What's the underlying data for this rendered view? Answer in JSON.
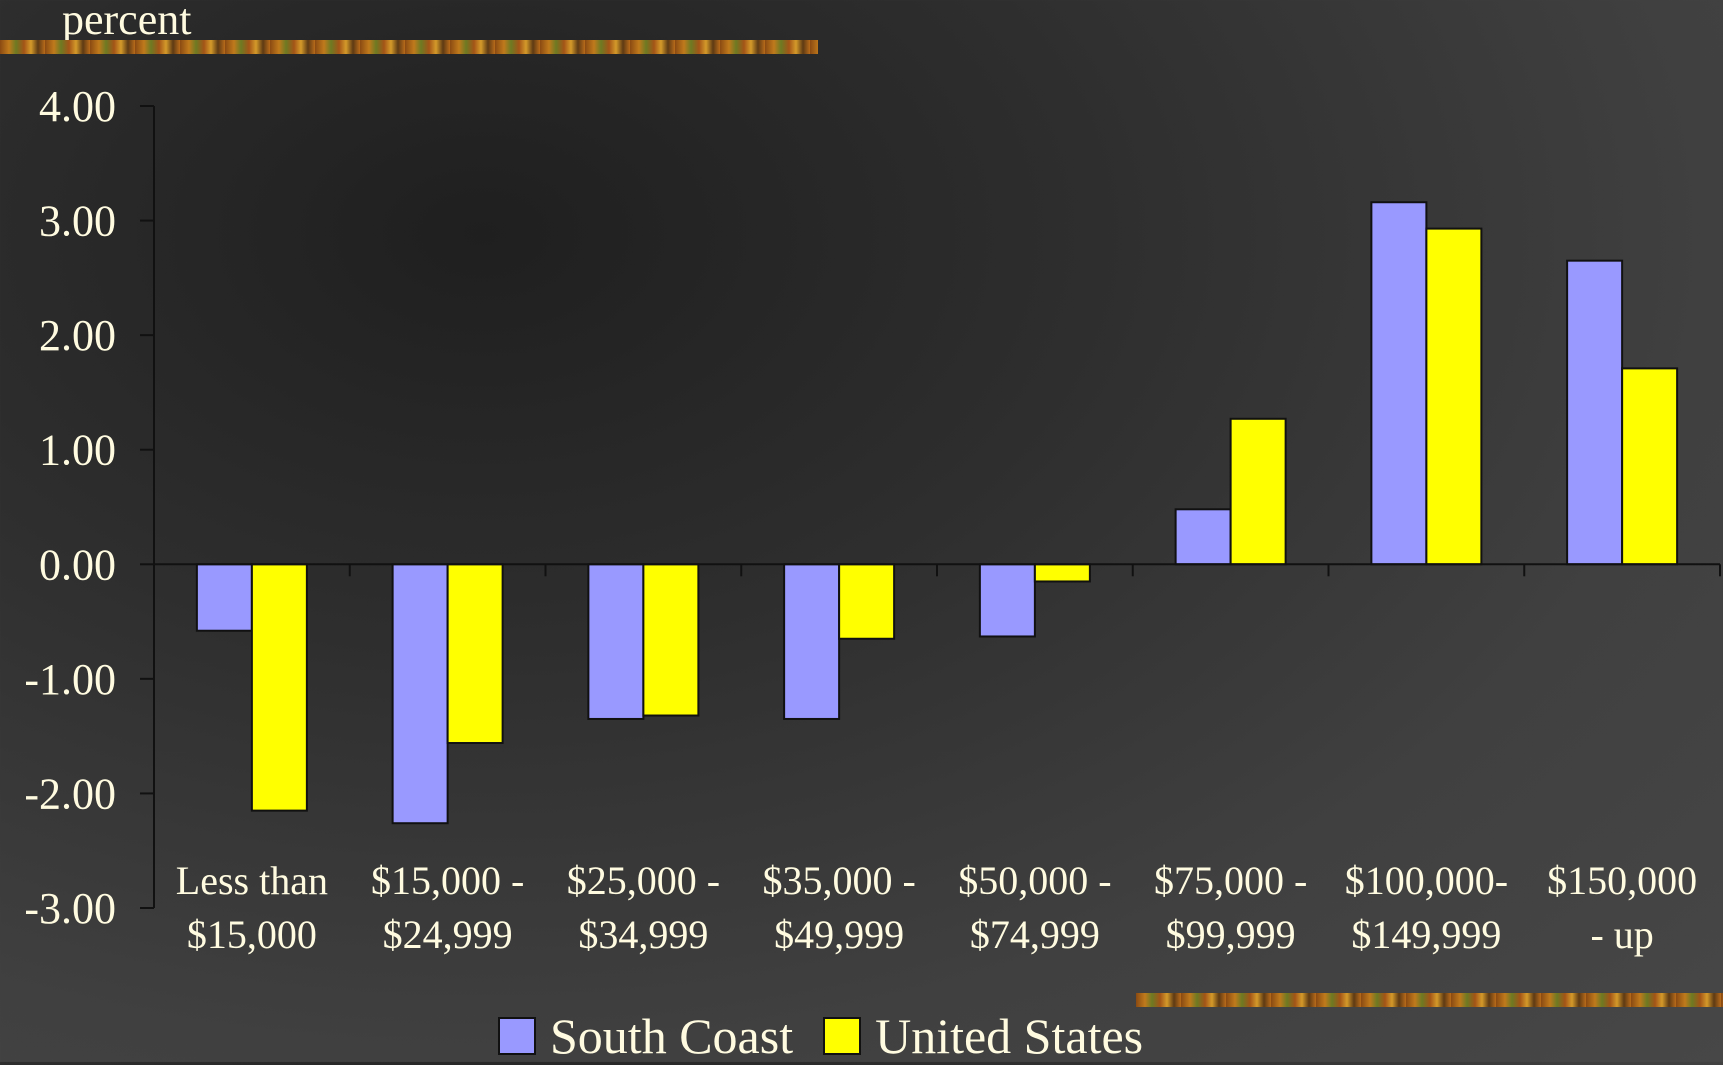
{
  "chart_data": {
    "type": "bar",
    "ylabel": "percent",
    "ylim": [
      -3,
      4
    ],
    "yticks": [
      "4.00",
      "3.00",
      "2.00",
      "1.00",
      "0.00",
      "-1.00",
      "-2.00",
      "-3.00"
    ],
    "yticks_values": [
      4,
      3,
      2,
      1,
      0,
      -1,
      -2,
      -3
    ],
    "categories": [
      [
        "Less than",
        "$15,000"
      ],
      [
        "$15,000 -",
        "$24,999"
      ],
      [
        "$25,000 -",
        "$34,999"
      ],
      [
        "$35,000 -",
        "$49,999"
      ],
      [
        "$50,000 -",
        "$74,999"
      ],
      [
        "$75,000 -",
        "$99,999"
      ],
      [
        "$100,000-",
        "$149,999"
      ],
      [
        "$150,000",
        "- up"
      ]
    ],
    "series": [
      {
        "name": "South Coast",
        "color": "#9999ff",
        "values": [
          -0.58,
          -2.26,
          -1.35,
          -1.35,
          -0.63,
          0.48,
          3.16,
          2.65
        ]
      },
      {
        "name": "United States",
        "color": "#ffff00",
        "values": [
          -2.15,
          -1.56,
          -1.32,
          -0.65,
          -0.15,
          1.27,
          2.93,
          1.71
        ]
      }
    ],
    "legend_position": "bottom",
    "grid": false
  }
}
